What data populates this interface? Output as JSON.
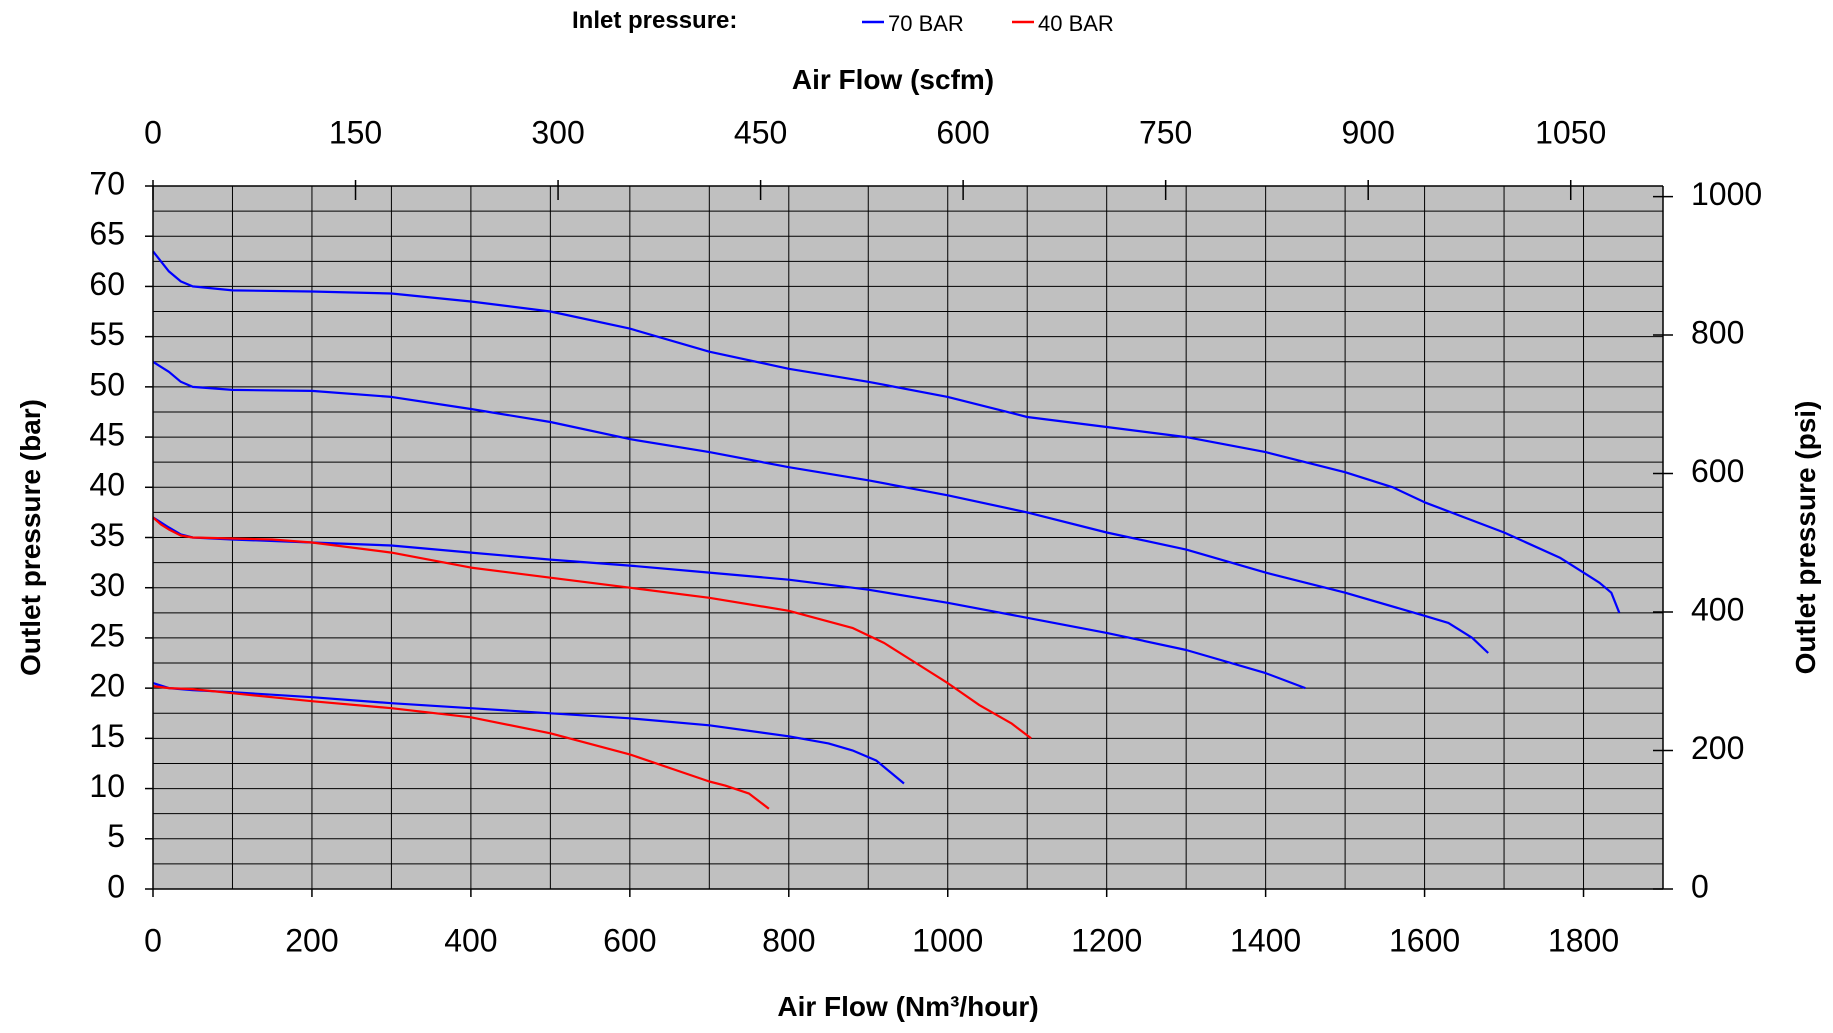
{
  "legend": {
    "title": "Inlet pressure:",
    "items": [
      {
        "label": "70 BAR",
        "color": "#0000ff"
      },
      {
        "label": "40 BAR",
        "color": "#ff0000"
      }
    ]
  },
  "chart_data": {
    "type": "line",
    "xlabel": "Air Flow (Nm³/hour)",
    "xlabel_top": "Air Flow (scfm)",
    "ylabel": "Outlet pressure (bar)",
    "ylabel_right": "Outlet pressure (psi)",
    "xlim": [
      0,
      1900
    ],
    "ylim": [
      0,
      70
    ],
    "x_ticks": [
      0,
      200,
      400,
      600,
      800,
      1000,
      1200,
      1400,
      1600,
      1800
    ],
    "y_ticks": [
      0,
      5,
      10,
      15,
      20,
      25,
      30,
      35,
      40,
      45,
      50,
      55,
      60,
      65,
      70
    ],
    "x_top_ticks": [
      0,
      150,
      300,
      450,
      600,
      750,
      900,
      1050
    ],
    "y_right_ticks": [
      0,
      200,
      400,
      600,
      800,
      1000
    ],
    "grid": true,
    "plot_background": "#c0c0c0",
    "series": [
      {
        "name": "70 BAR",
        "color": "#0000ff",
        "points": [
          [
            0,
            63.5
          ],
          [
            10,
            62.5
          ],
          [
            20,
            61.5
          ],
          [
            35,
            60.5
          ],
          [
            50,
            60
          ],
          [
            100,
            59.6
          ],
          [
            200,
            59.5
          ],
          [
            300,
            59.3
          ],
          [
            400,
            58.5
          ],
          [
            500,
            57.5
          ],
          [
            600,
            55.8
          ],
          [
            700,
            53.5
          ],
          [
            800,
            51.8
          ],
          [
            900,
            50.5
          ],
          [
            1000,
            49
          ],
          [
            1100,
            47
          ],
          [
            1200,
            46
          ],
          [
            1300,
            45
          ],
          [
            1400,
            43.5
          ],
          [
            1500,
            41.5
          ],
          [
            1560,
            40
          ],
          [
            1600,
            38.5
          ],
          [
            1700,
            35.5
          ],
          [
            1770,
            33
          ],
          [
            1800,
            31.5
          ],
          [
            1820,
            30.5
          ],
          [
            1835,
            29.5
          ],
          [
            1845,
            27.5
          ]
        ]
      },
      {
        "name": "70 BAR",
        "color": "#0000ff",
        "points": [
          [
            0,
            52.5
          ],
          [
            10,
            52
          ],
          [
            20,
            51.5
          ],
          [
            35,
            50.5
          ],
          [
            50,
            50
          ],
          [
            100,
            49.7
          ],
          [
            200,
            49.6
          ],
          [
            300,
            49
          ],
          [
            400,
            47.8
          ],
          [
            500,
            46.5
          ],
          [
            600,
            44.8
          ],
          [
            700,
            43.5
          ],
          [
            800,
            42
          ],
          [
            900,
            40.7
          ],
          [
            1000,
            39.2
          ],
          [
            1100,
            37.5
          ],
          [
            1200,
            35.5
          ],
          [
            1300,
            33.8
          ],
          [
            1400,
            31.5
          ],
          [
            1500,
            29.5
          ],
          [
            1600,
            27.2
          ],
          [
            1630,
            26.5
          ],
          [
            1660,
            25
          ],
          [
            1680,
            23.5
          ]
        ]
      },
      {
        "name": "70 BAR",
        "color": "#0000ff",
        "points": [
          [
            0,
            37
          ],
          [
            10,
            36.5
          ],
          [
            20,
            36
          ],
          [
            35,
            35.3
          ],
          [
            50,
            35
          ],
          [
            100,
            34.8
          ],
          [
            200,
            34.5
          ],
          [
            300,
            34.2
          ],
          [
            400,
            33.5
          ],
          [
            500,
            32.8
          ],
          [
            600,
            32.2
          ],
          [
            700,
            31.5
          ],
          [
            800,
            30.8
          ],
          [
            900,
            29.8
          ],
          [
            1000,
            28.5
          ],
          [
            1100,
            27
          ],
          [
            1200,
            25.5
          ],
          [
            1300,
            23.8
          ],
          [
            1400,
            21.5
          ],
          [
            1450,
            20
          ]
        ]
      },
      {
        "name": "70 BAR",
        "color": "#0000ff",
        "points": [
          [
            0,
            20.5
          ],
          [
            20,
            20
          ],
          [
            50,
            19.8
          ],
          [
            100,
            19.6
          ],
          [
            200,
            19.1
          ],
          [
            300,
            18.5
          ],
          [
            400,
            18
          ],
          [
            500,
            17.5
          ],
          [
            600,
            17
          ],
          [
            700,
            16.3
          ],
          [
            800,
            15.2
          ],
          [
            850,
            14.5
          ],
          [
            880,
            13.8
          ],
          [
            910,
            12.8
          ],
          [
            945,
            10.5
          ]
        ]
      },
      {
        "name": "40 BAR",
        "color": "#ff0000",
        "points": [
          [
            0,
            37
          ],
          [
            10,
            36.3
          ],
          [
            20,
            35.8
          ],
          [
            35,
            35.2
          ],
          [
            50,
            35
          ],
          [
            100,
            34.9
          ],
          [
            150,
            34.8
          ],
          [
            200,
            34.5
          ],
          [
            300,
            33.5
          ],
          [
            400,
            32
          ],
          [
            500,
            31
          ],
          [
            600,
            30
          ],
          [
            700,
            29
          ],
          [
            800,
            27.7
          ],
          [
            880,
            26
          ],
          [
            920,
            24.5
          ],
          [
            960,
            22.5
          ],
          [
            1000,
            20.5
          ],
          [
            1040,
            18.3
          ],
          [
            1080,
            16.5
          ],
          [
            1105,
            15
          ]
        ]
      },
      {
        "name": "40 BAR",
        "color": "#ff0000",
        "points": [
          [
            0,
            20.2
          ],
          [
            20,
            20
          ],
          [
            50,
            19.9
          ],
          [
            100,
            19.5
          ],
          [
            200,
            18.7
          ],
          [
            300,
            18
          ],
          [
            400,
            17.1
          ],
          [
            500,
            15.5
          ],
          [
            600,
            13.4
          ],
          [
            700,
            10.7
          ],
          [
            720,
            10.3
          ],
          [
            750,
            9.5
          ],
          [
            775,
            8
          ]
        ]
      }
    ]
  }
}
